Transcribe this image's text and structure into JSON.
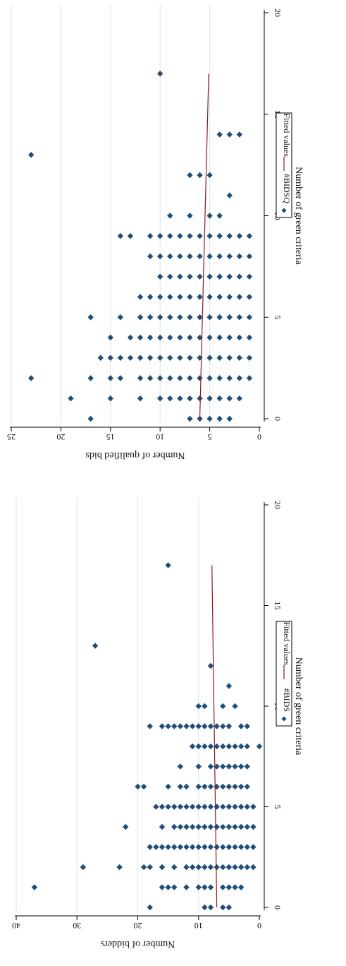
{
  "chart_data": [
    {
      "type": "scatter",
      "xlabel": "Number of green criteria",
      "ylabel": "Number of qualified bids",
      "xlim": [
        0,
        20
      ],
      "ylim": [
        0,
        25
      ],
      "x_ticks": [
        "0",
        "5",
        "10",
        "15",
        "20"
      ],
      "y_ticks": [
        "0",
        "5",
        "10",
        "15",
        "20",
        "25"
      ],
      "grid": true,
      "legend": [
        "#BIDSQ",
        "Fitted values"
      ],
      "legend_position": "right",
      "series": [
        {
          "name": "#BIDSQ",
          "kind": "points",
          "color": "#1f4e79",
          "points": [
            [
              0,
              17
            ],
            [
              0,
              6
            ],
            [
              0,
              5
            ],
            [
              0,
              4
            ],
            [
              0,
              3
            ],
            [
              0,
              7
            ],
            [
              1,
              19
            ],
            [
              1,
              15
            ],
            [
              1,
              12
            ],
            [
              1,
              10
            ],
            [
              1,
              9
            ],
            [
              1,
              8
            ],
            [
              1,
              7
            ],
            [
              1,
              6
            ],
            [
              1,
              5
            ],
            [
              1,
              4
            ],
            [
              1,
              3
            ],
            [
              1,
              2
            ],
            [
              2,
              23
            ],
            [
              2,
              17
            ],
            [
              2,
              15
            ],
            [
              2,
              14
            ],
            [
              2,
              12
            ],
            [
              2,
              11
            ],
            [
              2,
              10
            ],
            [
              2,
              9
            ],
            [
              2,
              8
            ],
            [
              2,
              7
            ],
            [
              2,
              6
            ],
            [
              2,
              5
            ],
            [
              2,
              4
            ],
            [
              2,
              3
            ],
            [
              2,
              2
            ],
            [
              2,
              1
            ],
            [
              3,
              16
            ],
            [
              3,
              15
            ],
            [
              3,
              14
            ],
            [
              3,
              13
            ],
            [
              3,
              12
            ],
            [
              3,
              11
            ],
            [
              3,
              10
            ],
            [
              3,
              9
            ],
            [
              3,
              8
            ],
            [
              3,
              7
            ],
            [
              3,
              6
            ],
            [
              3,
              5
            ],
            [
              3,
              4
            ],
            [
              3,
              3
            ],
            [
              3,
              2
            ],
            [
              3,
              1
            ],
            [
              4,
              15
            ],
            [
              4,
              13
            ],
            [
              4,
              12
            ],
            [
              4,
              11
            ],
            [
              4,
              10
            ],
            [
              4,
              9
            ],
            [
              4,
              8
            ],
            [
              4,
              7
            ],
            [
              4,
              6
            ],
            [
              4,
              5
            ],
            [
              4,
              4
            ],
            [
              4,
              3
            ],
            [
              4,
              2
            ],
            [
              4,
              1
            ],
            [
              5,
              17
            ],
            [
              5,
              14
            ],
            [
              5,
              12
            ],
            [
              5,
              11
            ],
            [
              5,
              10
            ],
            [
              5,
              9
            ],
            [
              5,
              8
            ],
            [
              5,
              7
            ],
            [
              5,
              6
            ],
            [
              5,
              5
            ],
            [
              5,
              4
            ],
            [
              5,
              3
            ],
            [
              5,
              2
            ],
            [
              5,
              1
            ],
            [
              6,
              12
            ],
            [
              6,
              11
            ],
            [
              6,
              10
            ],
            [
              6,
              9
            ],
            [
              6,
              8
            ],
            [
              6,
              7
            ],
            [
              6,
              6
            ],
            [
              6,
              5
            ],
            [
              6,
              4
            ],
            [
              6,
              3
            ],
            [
              6,
              2
            ],
            [
              6,
              1
            ],
            [
              7,
              10
            ],
            [
              7,
              9
            ],
            [
              7,
              8
            ],
            [
              7,
              7
            ],
            [
              7,
              6
            ],
            [
              7,
              5
            ],
            [
              7,
              4
            ],
            [
              7,
              3
            ],
            [
              7,
              2
            ],
            [
              7,
              1
            ],
            [
              8,
              11
            ],
            [
              8,
              10
            ],
            [
              8,
              9
            ],
            [
              8,
              8
            ],
            [
              8,
              7
            ],
            [
              8,
              6
            ],
            [
              8,
              5
            ],
            [
              8,
              4
            ],
            [
              8,
              3
            ],
            [
              8,
              2
            ],
            [
              8,
              1
            ],
            [
              9,
              14
            ],
            [
              9,
              13
            ],
            [
              9,
              11
            ],
            [
              9,
              10
            ],
            [
              9,
              9
            ],
            [
              9,
              8
            ],
            [
              9,
              7
            ],
            [
              9,
              6
            ],
            [
              9,
              5
            ],
            [
              9,
              4
            ],
            [
              9,
              3
            ],
            [
              9,
              2
            ],
            [
              9,
              1
            ],
            [
              10,
              9
            ],
            [
              10,
              7
            ],
            [
              10,
              5
            ],
            [
              10,
              4
            ],
            [
              11,
              3
            ],
            [
              12,
              7
            ],
            [
              12,
              6
            ],
            [
              12,
              5
            ],
            [
              13,
              23
            ],
            [
              14,
              4
            ],
            [
              14,
              3
            ],
            [
              14,
              2
            ],
            [
              17,
              10
            ]
          ]
        },
        {
          "name": "Fitted values",
          "kind": "line",
          "color": "#8b1a1a",
          "points": [
            [
              0,
              6.0
            ],
            [
              17,
              5.1
            ]
          ]
        }
      ]
    },
    {
      "type": "scatter",
      "xlabel": "Number of green criteria",
      "ylabel": "Number of bidders",
      "xlim": [
        0,
        20
      ],
      "ylim": [
        0,
        40
      ],
      "x_ticks": [
        "0",
        "5",
        "10",
        "15",
        "20"
      ],
      "y_ticks": [
        "0",
        "10",
        "20",
        "30",
        "40"
      ],
      "grid": true,
      "legend": [
        "#BIDS",
        "Fitted values"
      ],
      "legend_position": "right",
      "series": [
        {
          "name": "#BIDS",
          "kind": "points",
          "color": "#1f4e79",
          "points": [
            [
              0,
              18
            ],
            [
              0,
              9
            ],
            [
              0,
              8
            ],
            [
              0,
              6
            ],
            [
              0,
              5
            ],
            [
              1,
              37
            ],
            [
              1,
              16
            ],
            [
              1,
              15
            ],
            [
              1,
              14
            ],
            [
              1,
              12
            ],
            [
              1,
              10
            ],
            [
              1,
              9
            ],
            [
              1,
              8
            ],
            [
              1,
              6
            ],
            [
              1,
              5
            ],
            [
              1,
              4
            ],
            [
              1,
              3
            ],
            [
              2,
              29
            ],
            [
              2,
              23
            ],
            [
              2,
              19
            ],
            [
              2,
              18
            ],
            [
              2,
              16
            ],
            [
              2,
              14
            ],
            [
              2,
              12
            ],
            [
              2,
              11
            ],
            [
              2,
              10
            ],
            [
              2,
              9
            ],
            [
              2,
              8
            ],
            [
              2,
              7
            ],
            [
              2,
              6
            ],
            [
              2,
              5
            ],
            [
              2,
              4
            ],
            [
              2,
              3
            ],
            [
              2,
              2
            ],
            [
              2,
              1
            ],
            [
              3,
              18
            ],
            [
              3,
              17
            ],
            [
              3,
              16
            ],
            [
              3,
              15
            ],
            [
              3,
              14
            ],
            [
              3,
              13
            ],
            [
              3,
              12
            ],
            [
              3,
              11
            ],
            [
              3,
              10
            ],
            [
              3,
              9
            ],
            [
              3,
              8
            ],
            [
              3,
              7
            ],
            [
              3,
              6
            ],
            [
              3,
              5
            ],
            [
              3,
              4
            ],
            [
              3,
              3
            ],
            [
              3,
              2
            ],
            [
              3,
              1
            ],
            [
              4,
              22
            ],
            [
              4,
              16
            ],
            [
              4,
              14
            ],
            [
              4,
              13
            ],
            [
              4,
              12
            ],
            [
              4,
              11
            ],
            [
              4,
              10
            ],
            [
              4,
              9
            ],
            [
              4,
              8
            ],
            [
              4,
              7
            ],
            [
              4,
              6
            ],
            [
              4,
              5
            ],
            [
              4,
              4
            ],
            [
              4,
              3
            ],
            [
              4,
              2
            ],
            [
              4,
              1
            ],
            [
              5,
              17
            ],
            [
              5,
              16
            ],
            [
              5,
              15
            ],
            [
              5,
              14
            ],
            [
              5,
              13
            ],
            [
              5,
              12
            ],
            [
              5,
              11
            ],
            [
              5,
              10
            ],
            [
              5,
              9
            ],
            [
              5,
              8
            ],
            [
              5,
              7
            ],
            [
              5,
              6
            ],
            [
              5,
              5
            ],
            [
              5,
              4
            ],
            [
              5,
              3
            ],
            [
              5,
              2
            ],
            [
              5,
              1
            ],
            [
              6,
              20
            ],
            [
              6,
              19
            ],
            [
              6,
              15
            ],
            [
              6,
              13
            ],
            [
              6,
              12
            ],
            [
              6,
              10
            ],
            [
              6,
              9
            ],
            [
              6,
              8
            ],
            [
              6,
              7
            ],
            [
              6,
              6
            ],
            [
              6,
              5
            ],
            [
              6,
              4
            ],
            [
              6,
              3
            ],
            [
              6,
              2
            ],
            [
              7,
              13
            ],
            [
              7,
              10
            ],
            [
              7,
              8
            ],
            [
              7,
              7
            ],
            [
              7,
              6
            ],
            [
              7,
              5
            ],
            [
              7,
              4
            ],
            [
              7,
              3
            ],
            [
              7,
              2
            ],
            [
              8,
              11
            ],
            [
              8,
              10
            ],
            [
              8,
              9
            ],
            [
              8,
              8
            ],
            [
              8,
              7
            ],
            [
              8,
              6
            ],
            [
              8,
              5
            ],
            [
              8,
              4
            ],
            [
              8,
              3
            ],
            [
              8,
              2
            ],
            [
              8,
              0
            ],
            [
              9,
              18
            ],
            [
              9,
              16
            ],
            [
              9,
              15
            ],
            [
              9,
              14
            ],
            [
              9,
              13
            ],
            [
              9,
              12
            ],
            [
              9,
              11
            ],
            [
              9,
              10
            ],
            [
              9,
              9
            ],
            [
              9,
              8
            ],
            [
              9,
              7
            ],
            [
              9,
              6
            ],
            [
              9,
              5
            ],
            [
              9,
              3
            ],
            [
              9,
              2
            ],
            [
              10,
              10
            ],
            [
              10,
              9
            ],
            [
              10,
              6
            ],
            [
              10,
              4
            ],
            [
              11,
              5
            ],
            [
              12,
              8
            ],
            [
              13,
              27
            ],
            [
              17,
              15
            ]
          ]
        },
        {
          "name": "Fitted values",
          "kind": "line",
          "color": "#8b1a1a",
          "points": [
            [
              0,
              7.0
            ],
            [
              17,
              7.8
            ]
          ]
        }
      ]
    }
  ]
}
